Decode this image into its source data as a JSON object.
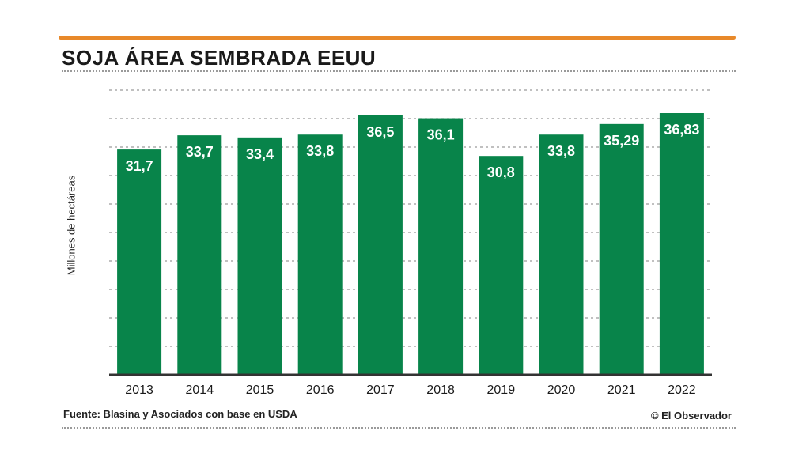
{
  "colors": {
    "accent": "#e8892a",
    "bar": "#08844a",
    "bar_label": "#ffffff",
    "text": "#1a1a1a",
    "grid": "#9a9a9a"
  },
  "chart_data": {
    "type": "bar",
    "title": "SOJA ÁREA SEMBRADA EEUU",
    "xlabel": "",
    "ylabel": "Millones de hectáreas",
    "categories": [
      "2013",
      "2014",
      "2015",
      "2016",
      "2017",
      "2018",
      "2019",
      "2020",
      "2021",
      "2022"
    ],
    "values": [
      31.7,
      33.7,
      33.4,
      33.8,
      36.5,
      36.1,
      30.8,
      33.8,
      35.29,
      36.83
    ],
    "value_labels": [
      "31,7",
      "33,7",
      "33,4",
      "33,8",
      "36,5",
      "36,1",
      "30,8",
      "33,8",
      "35,29",
      "36,83"
    ],
    "ylim": [
      0,
      36.83
    ],
    "grid": true
  },
  "footer": {
    "source": "Fuente: Blasina y Asociados con base en USDA",
    "credit": "© El Observador"
  }
}
